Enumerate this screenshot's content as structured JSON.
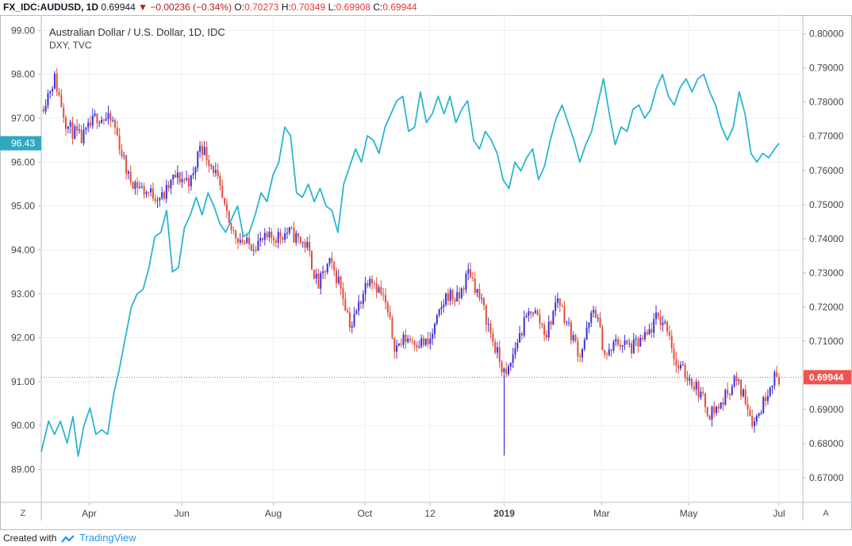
{
  "header": {
    "symbol": "FX_IDC:AUDUSD, 1D",
    "last": "0.69944",
    "change_arrow": "▼",
    "change": "−0.00236 (−0.34%)",
    "o_label": "O:",
    "o": "0.70273",
    "h_label": "H:",
    "h": "0.70349",
    "l_label": "L:",
    "l": "0.69908",
    "c_label": "C:",
    "c": "0.69944"
  },
  "legend": {
    "main": "Australian Dollar / U.S. Dollar, 1D, IDC",
    "overlay": "DXY, TVC"
  },
  "footer": {
    "created_with": "Created with",
    "brand": "TradingView"
  },
  "buttons": {
    "left_scale": "Z",
    "right_scale": "A"
  },
  "colors": {
    "up": "#3b30d6",
    "down": "#e04e3a",
    "overlay": "#29b6cf",
    "grid": "#eceff2",
    "axis_text": "#444444",
    "price_tag": "#ef5350",
    "dxy_tag": "#2fa9c2",
    "border": "#b8bcc4"
  },
  "chart_data": {
    "type": "line",
    "title": "Australian Dollar / U.S. Dollar, 1D, IDC",
    "left_axis": {
      "ticks": [
        "99.00",
        "98.00",
        "97.00",
        "96.00",
        "95.00",
        "94.00",
        "93.00",
        "92.00",
        "91.00",
        "90.00",
        "89.00"
      ],
      "range": [
        88.25,
        99.35
      ],
      "current_tag": "96.43",
      "current_value": 96.43
    },
    "right_axis": {
      "ticks": [
        "0.80000",
        "0.79000",
        "0.78000",
        "0.77000",
        "0.76000",
        "0.75000",
        "0.74000",
        "0.73000",
        "0.72000",
        "0.71000",
        "0.70000",
        "0.69000",
        "0.68000",
        "0.67000"
      ],
      "range": [
        0.6628,
        0.8055
      ],
      "current_tag": "0.69944",
      "current_value": 0.69944
    },
    "x_ticks": [
      "Apr",
      "Jun",
      "Aug",
      "Oct",
      "12",
      "2019",
      "Mar",
      "May",
      "Jul"
    ],
    "x_tick_positions": [
      0.065,
      0.1905,
      0.3145,
      0.4385,
      0.527,
      0.6275,
      0.7595,
      0.8775,
      1.0
    ],
    "x_range": [
      0,
      1
    ],
    "grid": true,
    "series": [
      {
        "name": "FX_IDC:AUDUSD",
        "kind": "candlestick",
        "axis": "right",
        "closes_keypoints": [
          [
            0.0,
            0.778
          ],
          [
            0.018,
            0.787
          ],
          [
            0.035,
            0.773
          ],
          [
            0.055,
            0.769
          ],
          [
            0.075,
            0.776
          ],
          [
            0.098,
            0.774
          ],
          [
            0.118,
            0.758
          ],
          [
            0.14,
            0.754
          ],
          [
            0.165,
            0.752
          ],
          [
            0.18,
            0.758
          ],
          [
            0.205,
            0.757
          ],
          [
            0.215,
            0.768
          ],
          [
            0.235,
            0.76
          ],
          [
            0.255,
            0.743
          ],
          [
            0.28,
            0.738
          ],
          [
            0.31,
            0.74
          ],
          [
            0.335,
            0.742
          ],
          [
            0.36,
            0.738
          ],
          [
            0.375,
            0.726
          ],
          [
            0.39,
            0.733
          ],
          [
            0.405,
            0.727
          ],
          [
            0.42,
            0.714
          ],
          [
            0.445,
            0.73
          ],
          [
            0.465,
            0.722
          ],
          [
            0.48,
            0.708
          ],
          [
            0.495,
            0.711
          ],
          [
            0.525,
            0.709
          ],
          [
            0.55,
            0.724
          ],
          [
            0.565,
            0.722
          ],
          [
            0.58,
            0.731
          ],
          [
            0.6,
            0.719
          ],
          [
            0.615,
            0.708
          ],
          [
            0.625,
            0.702
          ],
          [
            0.63,
            0.699
          ],
          [
            0.645,
            0.71
          ],
          [
            0.665,
            0.72
          ],
          [
            0.685,
            0.712
          ],
          [
            0.7,
            0.723
          ],
          [
            0.715,
            0.714
          ],
          [
            0.73,
            0.706
          ],
          [
            0.75,
            0.72
          ],
          [
            0.765,
            0.705
          ],
          [
            0.78,
            0.71
          ],
          [
            0.8,
            0.708
          ],
          [
            0.82,
            0.711
          ],
          [
            0.835,
            0.717
          ],
          [
            0.85,
            0.714
          ],
          [
            0.86,
            0.703
          ],
          [
            0.875,
            0.7
          ],
          [
            0.89,
            0.696
          ],
          [
            0.905,
            0.689
          ],
          [
            0.92,
            0.691
          ],
          [
            0.94,
            0.699
          ],
          [
            0.955,
            0.693
          ],
          [
            0.965,
            0.686
          ],
          [
            0.975,
            0.69
          ],
          [
            0.99,
            0.699
          ],
          [
            1.0,
            0.69944
          ]
        ],
        "spike": {
          "x": 0.6275,
          "low": 0.6765
        }
      },
      {
        "name": "TVC:DXY",
        "kind": "line",
        "axis": "left",
        "points": [
          [
            0.0,
            89.4
          ],
          [
            0.01,
            90.1
          ],
          [
            0.018,
            89.8
          ],
          [
            0.026,
            90.1
          ],
          [
            0.035,
            89.6
          ],
          [
            0.043,
            90.2
          ],
          [
            0.05,
            89.3
          ],
          [
            0.058,
            90.0
          ],
          [
            0.066,
            90.4
          ],
          [
            0.074,
            89.8
          ],
          [
            0.082,
            89.9
          ],
          [
            0.09,
            89.8
          ],
          [
            0.098,
            90.7
          ],
          [
            0.106,
            91.3
          ],
          [
            0.114,
            92.0
          ],
          [
            0.122,
            92.7
          ],
          [
            0.13,
            93.0
          ],
          [
            0.138,
            93.1
          ],
          [
            0.146,
            93.6
          ],
          [
            0.154,
            94.3
          ],
          [
            0.162,
            94.4
          ],
          [
            0.17,
            94.9
          ],
          [
            0.178,
            93.5
          ],
          [
            0.186,
            93.6
          ],
          [
            0.194,
            94.5
          ],
          [
            0.202,
            94.8
          ],
          [
            0.21,
            95.2
          ],
          [
            0.218,
            94.8
          ],
          [
            0.226,
            95.3
          ],
          [
            0.234,
            95.0
          ],
          [
            0.242,
            94.6
          ],
          [
            0.25,
            94.4
          ],
          [
            0.258,
            94.7
          ],
          [
            0.266,
            95.0
          ],
          [
            0.274,
            94.3
          ],
          [
            0.282,
            94.4
          ],
          [
            0.29,
            94.8
          ],
          [
            0.298,
            95.3
          ],
          [
            0.306,
            95.1
          ],
          [
            0.314,
            95.7
          ],
          [
            0.322,
            96.0
          ],
          [
            0.33,
            96.8
          ],
          [
            0.338,
            96.6
          ],
          [
            0.346,
            95.3
          ],
          [
            0.354,
            95.2
          ],
          [
            0.362,
            95.5
          ],
          [
            0.37,
            95.1
          ],
          [
            0.378,
            95.4
          ],
          [
            0.386,
            95.0
          ],
          [
            0.394,
            94.9
          ],
          [
            0.402,
            94.4
          ],
          [
            0.41,
            95.5
          ],
          [
            0.418,
            95.9
          ],
          [
            0.426,
            96.3
          ],
          [
            0.434,
            96.0
          ],
          [
            0.442,
            96.6
          ],
          [
            0.45,
            96.5
          ],
          [
            0.458,
            96.2
          ],
          [
            0.466,
            96.8
          ],
          [
            0.474,
            97.1
          ],
          [
            0.482,
            97.4
          ],
          [
            0.49,
            97.5
          ],
          [
            0.498,
            96.7
          ],
          [
            0.506,
            96.8
          ],
          [
            0.514,
            97.6
          ],
          [
            0.522,
            96.9
          ],
          [
            0.53,
            97.1
          ],
          [
            0.538,
            97.5
          ],
          [
            0.546,
            97.1
          ],
          [
            0.554,
            97.5
          ],
          [
            0.562,
            96.9
          ],
          [
            0.57,
            97.2
          ],
          [
            0.578,
            97.4
          ],
          [
            0.586,
            96.5
          ],
          [
            0.594,
            96.3
          ],
          [
            0.602,
            96.7
          ],
          [
            0.61,
            96.5
          ],
          [
            0.618,
            96.2
          ],
          [
            0.626,
            95.6
          ],
          [
            0.634,
            95.4
          ],
          [
            0.642,
            96.0
          ],
          [
            0.65,
            95.8
          ],
          [
            0.658,
            96.1
          ],
          [
            0.666,
            96.3
          ],
          [
            0.674,
            95.6
          ],
          [
            0.682,
            95.9
          ],
          [
            0.69,
            96.5
          ],
          [
            0.698,
            97.0
          ],
          [
            0.706,
            97.3
          ],
          [
            0.714,
            96.9
          ],
          [
            0.722,
            96.5
          ],
          [
            0.73,
            96.0
          ],
          [
            0.738,
            96.4
          ],
          [
            0.746,
            96.7
          ],
          [
            0.754,
            97.3
          ],
          [
            0.762,
            97.9
          ],
          [
            0.77,
            97.1
          ],
          [
            0.778,
            96.4
          ],
          [
            0.786,
            96.8
          ],
          [
            0.794,
            96.7
          ],
          [
            0.802,
            97.2
          ],
          [
            0.81,
            97.3
          ],
          [
            0.818,
            97.0
          ],
          [
            0.826,
            97.2
          ],
          [
            0.834,
            97.7
          ],
          [
            0.842,
            98.0
          ],
          [
            0.85,
            97.5
          ],
          [
            0.858,
            97.3
          ],
          [
            0.866,
            97.7
          ],
          [
            0.874,
            97.9
          ],
          [
            0.882,
            97.6
          ],
          [
            0.89,
            97.9
          ],
          [
            0.898,
            98.0
          ],
          [
            0.906,
            97.6
          ],
          [
            0.914,
            97.3
          ],
          [
            0.922,
            96.8
          ],
          [
            0.93,
            96.5
          ],
          [
            0.938,
            96.8
          ],
          [
            0.946,
            97.6
          ],
          [
            0.954,
            97.1
          ],
          [
            0.962,
            96.2
          ],
          [
            0.97,
            96.0
          ],
          [
            0.978,
            96.2
          ],
          [
            0.986,
            96.1
          ],
          [
            0.994,
            96.3
          ],
          [
            1.0,
            96.43
          ]
        ]
      }
    ]
  }
}
